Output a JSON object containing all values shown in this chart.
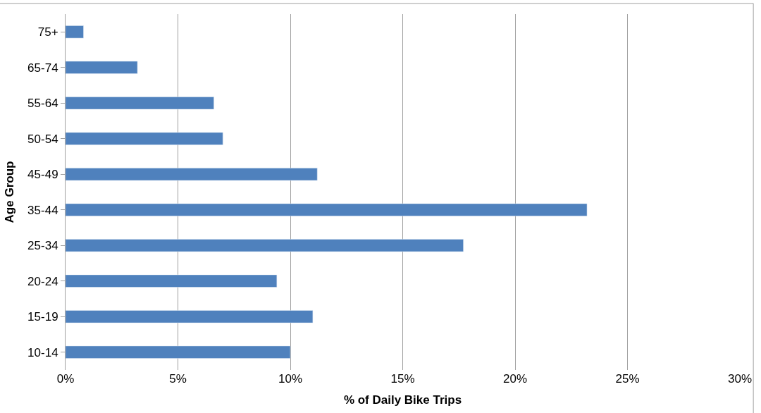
{
  "chart_data": {
    "type": "bar",
    "orientation": "horizontal",
    "xlabel": "% of Daily Bike Trips",
    "ylabel": "Age Group",
    "categories": [
      "75+",
      "65-74",
      "55-64",
      "50-54",
      "45-49",
      "35-44",
      "25-34",
      "20-24",
      "15-19",
      "10-14"
    ],
    "values": [
      0.8,
      3.2,
      6.6,
      7.0,
      11.2,
      23.2,
      17.7,
      9.4,
      11.0,
      10.0
    ],
    "color": "#4f81bd",
    "xlim": [
      0,
      30
    ],
    "xticks": [
      {
        "value": 0,
        "label": "0%"
      },
      {
        "value": 5,
        "label": "5%"
      },
      {
        "value": 10,
        "label": "10%"
      },
      {
        "value": 15,
        "label": "15%"
      },
      {
        "value": 20,
        "label": "20%"
      },
      {
        "value": 25,
        "label": "25%"
      },
      {
        "value": 30,
        "label": "30%"
      }
    ],
    "grid": "x",
    "legend": false
  }
}
